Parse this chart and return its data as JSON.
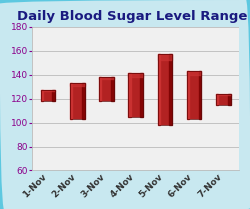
{
  "title": "Daily Blood Sugar Level Ranges",
  "categories": [
    "1-Nov",
    "2-Nov",
    "3-Nov",
    "4-Nov",
    "5-Nov",
    "6-Nov",
    "7-Nov"
  ],
  "low": [
    118,
    103,
    118,
    105,
    98,
    103,
    115
  ],
  "high": [
    127,
    133,
    138,
    141,
    157,
    143,
    124
  ],
  "bar_color_light": "#CC3333",
  "bar_color_mid": "#B22222",
  "bar_color_dark": "#7B0000",
  "ylim": [
    60,
    180
  ],
  "yticks": [
    60,
    80,
    100,
    120,
    140,
    160,
    180
  ],
  "title_fontsize": 9.5,
  "tick_fontsize": 6.5,
  "figure_bg": "#C8E8F0",
  "plot_bg": "#F0F0F0",
  "title_color": "#1A1A80",
  "ytick_color": "#8B008B",
  "xtick_color": "#333333",
  "grid_color": "#BBBBBB",
  "bar_width": 0.5
}
